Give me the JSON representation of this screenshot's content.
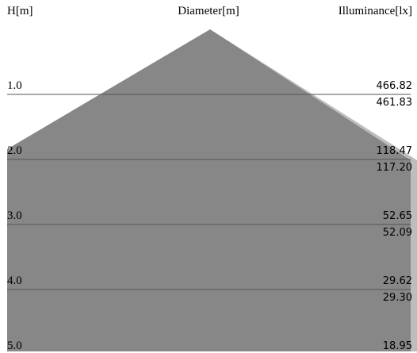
{
  "headers": {
    "height": "H[m]",
    "diameter": "Diameter[m]",
    "illuminance": "Illuminance[lx]"
  },
  "rows": [
    {
      "h": "1.0",
      "primary": "466.82",
      "secondary": "461.83"
    },
    {
      "h": "2.0",
      "primary": "118.47",
      "secondary": "117.20"
    },
    {
      "h": "3.0",
      "primary": "52.65",
      "secondary": "52.09"
    },
    {
      "h": "4.0",
      "primary": "29.62",
      "secondary": "29.30"
    },
    {
      "h": "5.0",
      "primary": "18.95",
      "secondary": ""
    }
  ],
  "colors": {
    "cone_main": "#878787",
    "cone_secondary": "#bdbdbd",
    "line": "#555555"
  }
}
